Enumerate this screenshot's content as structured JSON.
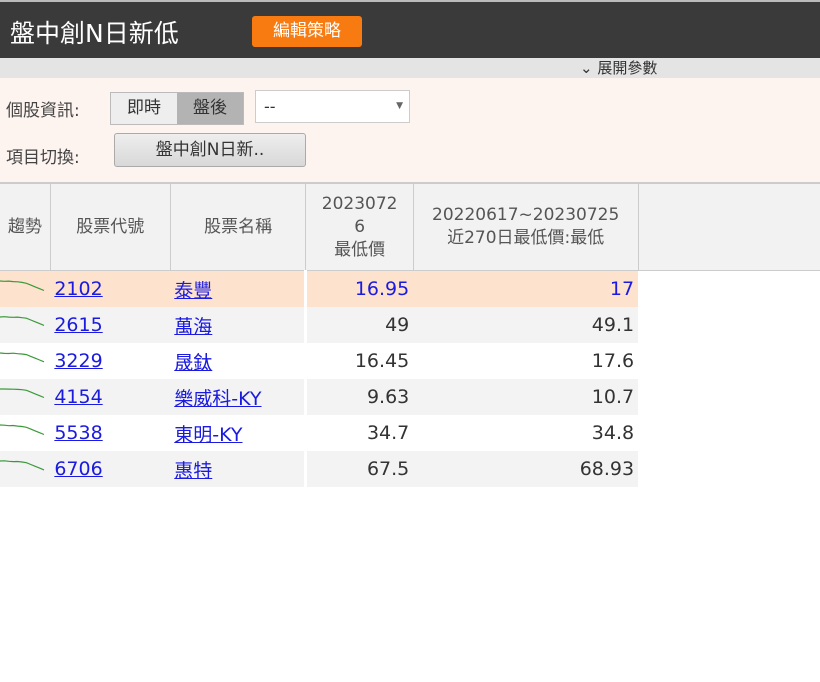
{
  "header": {
    "title": "盤中創N日新低",
    "edit_label": "編輯策略"
  },
  "expand_label": "展開參數",
  "filters": {
    "info_label": "個股資訊:",
    "mode_options": [
      "即時",
      "盤後"
    ],
    "mode_selected": "盤後",
    "dropdown_value": "--",
    "switch_label": "項目切換:",
    "switch_value": "盤中創N日新.."
  },
  "table": {
    "columns": [
      "趨勢",
      "股票代號",
      "股票名稱",
      "20230726\n最低價",
      "20220617~20230725\n近270日最低價:最低"
    ],
    "col4_lines": [
      "2023072",
      "6",
      "最低價"
    ],
    "col5_lines": [
      "20220617~20230725",
      "近270日最低價:最低"
    ],
    "rows": [
      {
        "code": "2102",
        "name": "泰豐",
        "low": "16.95",
        "min270": "17"
      },
      {
        "code": "2615",
        "name": "萬海",
        "low": "49",
        "min270": "49.1"
      },
      {
        "code": "3229",
        "name": "晟鈦",
        "low": "16.45",
        "min270": "17.6"
      },
      {
        "code": "4154",
        "name": "樂威科-KY",
        "low": "9.63",
        "min270": "10.7"
      },
      {
        "code": "5538",
        "name": "東明-KY",
        "low": "34.7",
        "min270": "34.8"
      },
      {
        "code": "6706",
        "name": "惠特",
        "low": "67.5",
        "min270": "68.93"
      }
    ]
  },
  "colors": {
    "accent": "#f77b10",
    "highlight_row": "#fde3cd",
    "link": "#1a1ae0",
    "sparkline": "#3a9a3a"
  }
}
